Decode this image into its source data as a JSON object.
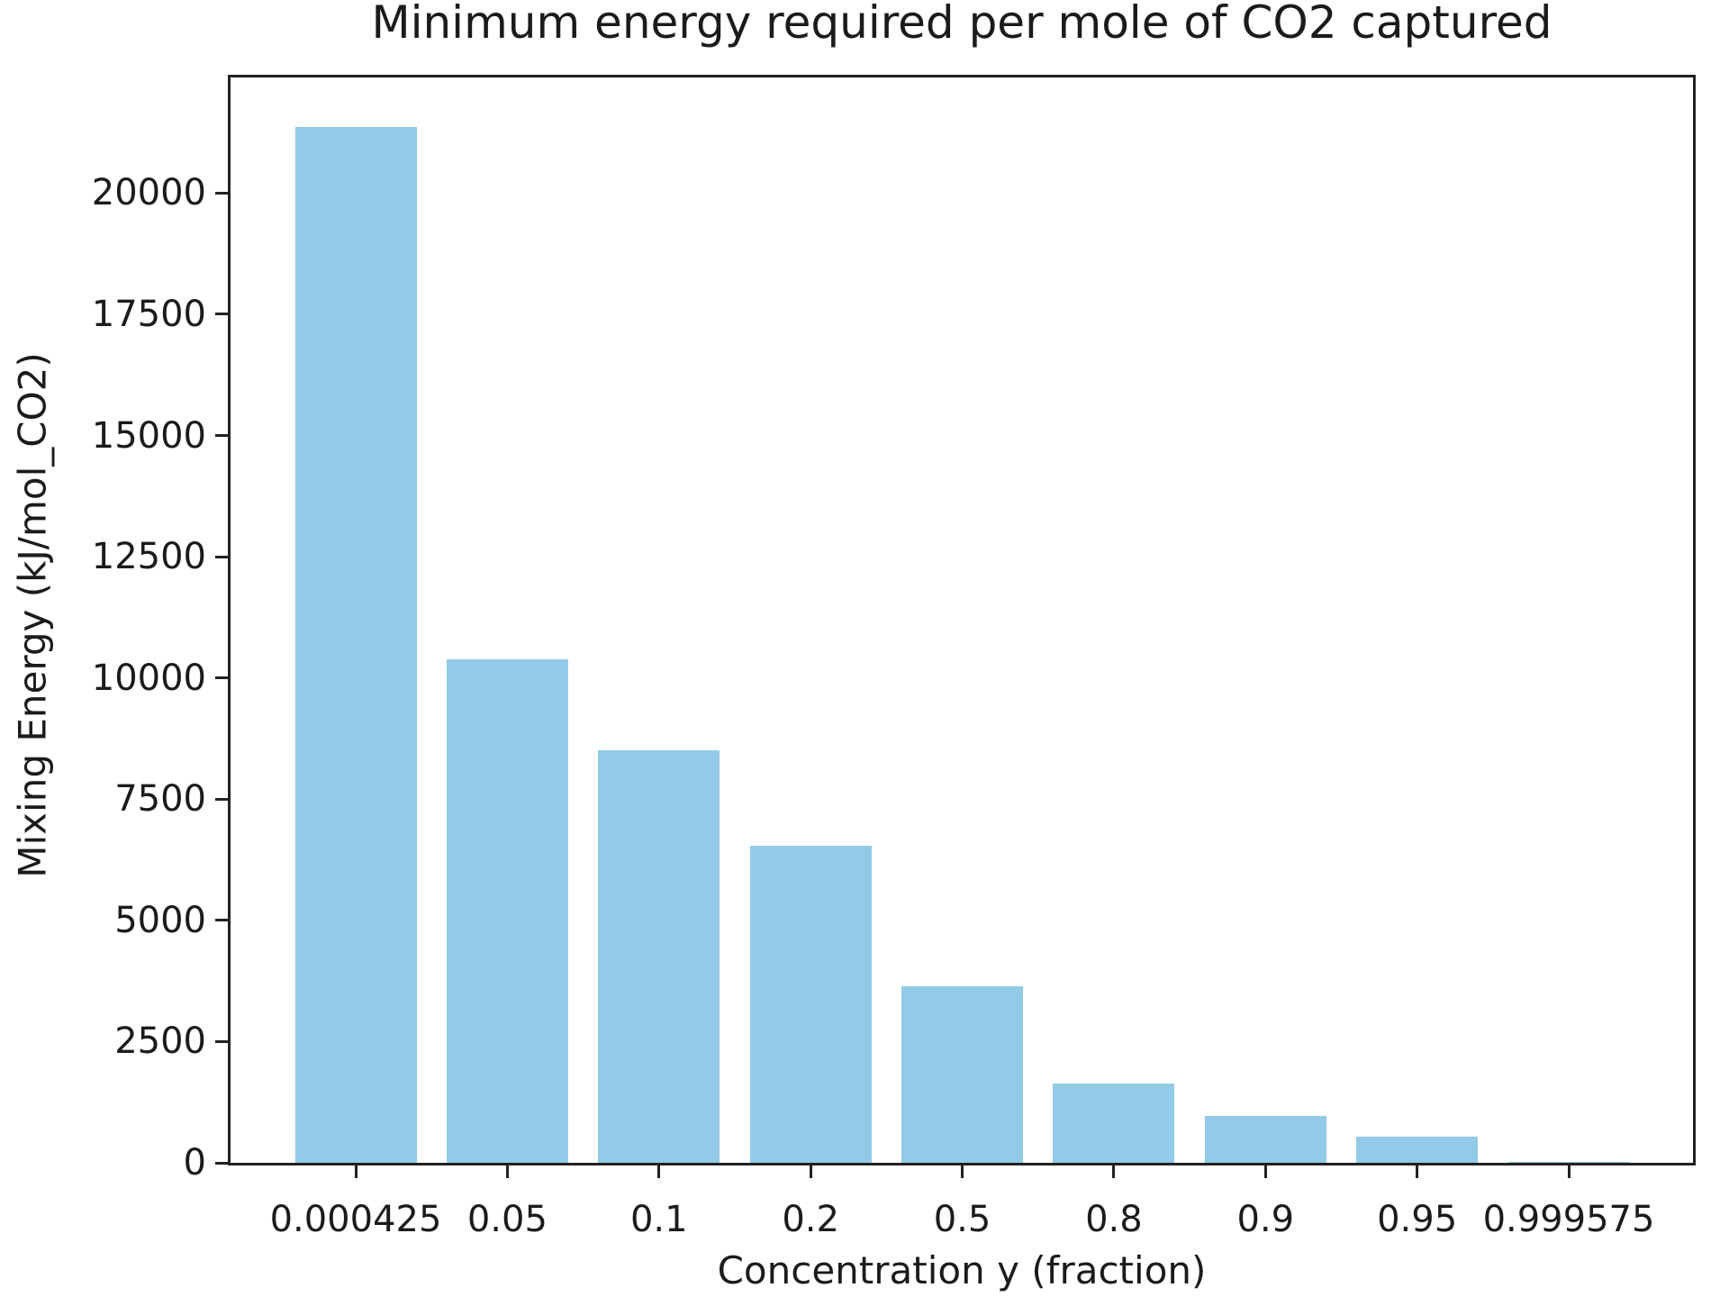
{
  "chart_data": {
    "type": "bar",
    "title": "Minimum energy required per mole of CO2 captured",
    "xlabel": "Concentration y (fraction)",
    "ylabel": "Mixing Energy (kJ/mol_CO2)",
    "categories": [
      "0.000425",
      "0.05",
      "0.1",
      "0.2",
      "0.5",
      "0.8",
      "0.9",
      "0.95",
      "0.999575"
    ],
    "values": [
      21370,
      10390,
      8500,
      6545,
      3640,
      1630,
      960,
      545,
      10
    ],
    "yticks": [
      0,
      2500,
      5000,
      7500,
      10000,
      12500,
      15000,
      17500,
      20000
    ],
    "ytick_labels": [
      "0",
      "2500",
      "5000",
      "7500",
      "10000",
      "12500",
      "15000",
      "17500",
      "20000"
    ],
    "ylim": [
      0,
      22384
    ],
    "bar_color": "#93CAE8",
    "axis_color": "#222222",
    "text_color": "#1b1b1b",
    "background_color": "#ffffff",
    "grid": false,
    "legend": null,
    "bar_width_fraction": 0.8
  }
}
